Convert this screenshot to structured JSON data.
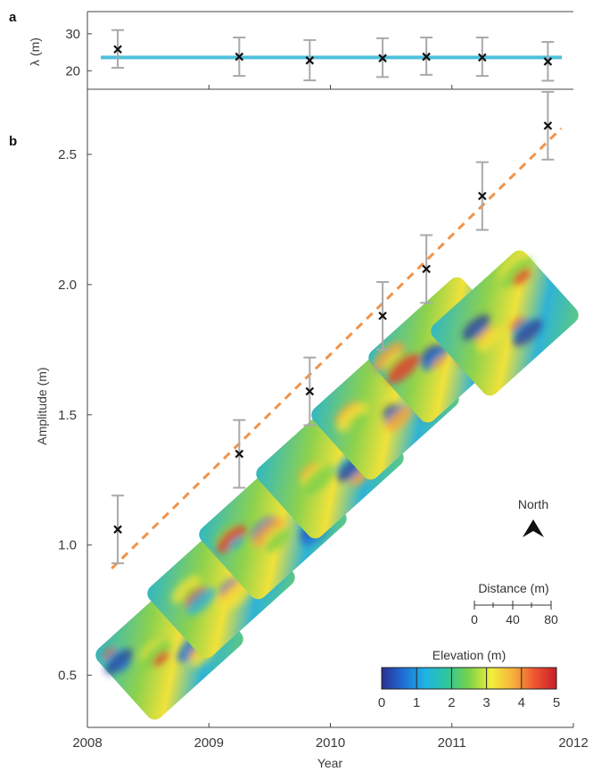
{
  "chart_data": [
    {
      "panel": "a",
      "type": "scatter",
      "ylabel": "λ (m)",
      "yticks": [
        20,
        30
      ],
      "ylim": [
        15,
        36
      ],
      "x": [
        2008.25,
        2009.25,
        2009.83,
        2010.43,
        2010.79,
        2011.25,
        2011.79
      ],
      "y": [
        25.8,
        23.8,
        22.8,
        23.4,
        23.8,
        23.6,
        22.5
      ],
      "err_low": [
        20.8,
        18.6,
        17.4,
        18.3,
        18.9,
        18.6,
        17.3
      ],
      "err_high": [
        31.0,
        29.0,
        28.3,
        28.8,
        29.0,
        29.0,
        27.8
      ],
      "mean_line": 23.6,
      "mean_line_color": "#4ec0dc"
    },
    {
      "panel": "b",
      "type": "scatter",
      "xlabel": "Year",
      "ylabel": "Amplitude (m)",
      "xlim": [
        2008,
        2012
      ],
      "xticks": [
        "2008",
        "2009",
        "2010",
        "2011",
        "2012"
      ],
      "ylim": [
        0.3,
        2.75
      ],
      "yticks": [
        "0.5",
        "1.0",
        "1.5",
        "2.0",
        "2.5"
      ],
      "x": [
        2008.25,
        2009.25,
        2009.83,
        2010.43,
        2010.79,
        2011.25,
        2011.79
      ],
      "y": [
        1.06,
        1.35,
        1.59,
        1.88,
        2.06,
        2.34,
        2.61
      ],
      "err_low": [
        0.93,
        1.22,
        1.46,
        1.75,
        1.93,
        2.21,
        2.48
      ],
      "err_high": [
        1.19,
        1.48,
        1.72,
        2.01,
        2.19,
        2.47,
        2.74
      ],
      "trend_line": {
        "x": [
          2008.2,
          2011.9
        ],
        "y": [
          0.91,
          2.6
        ],
        "color": "#f0934a",
        "style": "dashed"
      },
      "north_label": "North",
      "scale_bar": {
        "title": "Distance (m)",
        "ticks": [
          "0",
          "40",
          "80"
        ]
      },
      "colorbar": {
        "title": "Elevation (m)",
        "ticks": [
          "0",
          "1",
          "2",
          "3",
          "4",
          "5"
        ],
        "colors": [
          "#2a2f8f",
          "#1e6fd6",
          "#1fb4e6",
          "#2fc79a",
          "#7ad24a",
          "#f2ef3a",
          "#f7b23c",
          "#ee5530",
          "#c81e28"
        ]
      }
    }
  ],
  "panel_a_letter": "a",
  "panel_b_letter": "b"
}
